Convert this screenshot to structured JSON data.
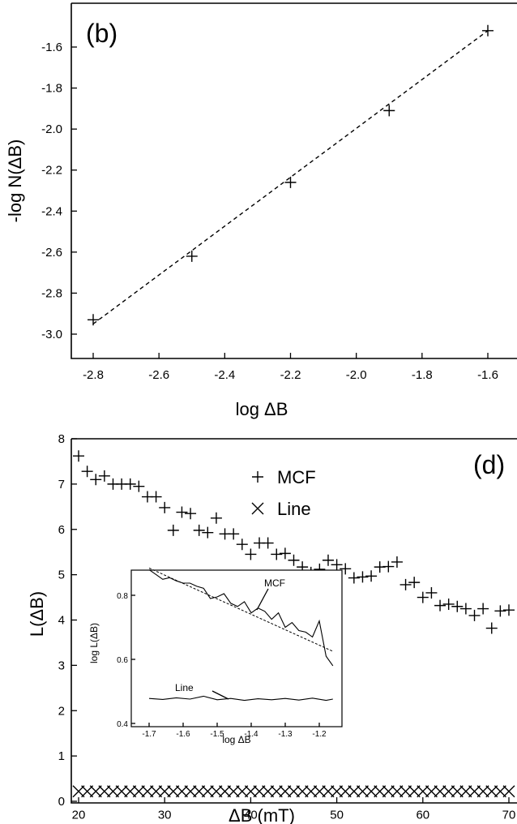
{
  "chart_data": [
    {
      "type": "scatter",
      "panel_label": "(b)",
      "xlabel": "log ΔB",
      "ylabel": "-log N(ΔB)",
      "xlim": [
        -2.9,
        -1.55
      ],
      "ylim": [
        -3.1,
        -1.45
      ],
      "xticks": [
        "-2.8",
        "-2.6",
        "-2.4",
        "-2.2",
        "-2.0",
        "-1.8",
        "-1.6"
      ],
      "xtick_values": [
        -2.8,
        -2.6,
        -2.4,
        -2.2,
        -2.0,
        -1.8,
        -1.6
      ],
      "yticks": [
        "-3.0",
        "-2.8",
        "-2.6",
        "-2.4",
        "-2.2",
        "-2.0",
        "-1.8",
        "-1.6"
      ],
      "ytick_values": [
        -3.0,
        -2.8,
        -2.6,
        -2.4,
        -2.2,
        -2.0,
        -1.8,
        -1.6
      ],
      "points": {
        "x": [
          -2.8,
          -2.5,
          -2.2,
          -1.9,
          -1.6
        ],
        "y": [
          -2.93,
          -2.62,
          -2.26,
          -1.91,
          -1.52
        ]
      },
      "fit_line": {
        "x": [
          -2.8,
          -1.6
        ],
        "y": [
          -2.95,
          -1.52
        ],
        "style": "dashed"
      }
    },
    {
      "type": "scatter",
      "panel_label": "(d)",
      "xlabel": "ΔB (mT)",
      "ylabel": "L(ΔB)",
      "xlim": [
        19.5,
        72
      ],
      "ylim": [
        0,
        8
      ],
      "xticks": [
        "20",
        "30",
        "40",
        "50",
        "60",
        "70"
      ],
      "xtick_values": [
        20,
        30,
        40,
        50,
        60,
        70
      ],
      "yticks": [
        "0",
        "1",
        "2",
        "3",
        "4",
        "5",
        "6",
        "7",
        "8"
      ],
      "ytick_values": [
        0,
        1,
        2,
        3,
        4,
        5,
        6,
        7,
        8
      ],
      "legend": [
        {
          "name": "MCF",
          "marker": "+"
        },
        {
          "name": "Line",
          "marker": "x"
        }
      ],
      "series": [
        {
          "name": "MCF",
          "marker": "+",
          "x": [
            20,
            21,
            22,
            23,
            24,
            25,
            26,
            27,
            28,
            29,
            30,
            31,
            32,
            33,
            34,
            35,
            36,
            37,
            38,
            39,
            40,
            41,
            42,
            43,
            44,
            45,
            46,
            47,
            48,
            49,
            50,
            51,
            52,
            53,
            54,
            55,
            56,
            57,
            58,
            59,
            60,
            61,
            62,
            63,
            64,
            65,
            66,
            67,
            68,
            69,
            70
          ],
          "y": [
            7.62,
            7.28,
            7.1,
            7.18,
            7.0,
            7.0,
            7.0,
            6.95,
            6.72,
            6.72,
            6.48,
            5.98,
            6.38,
            6.35,
            5.98,
            5.93,
            6.25,
            5.9,
            5.9,
            5.67,
            5.45,
            5.7,
            5.7,
            5.45,
            5.47,
            5.32,
            5.17,
            5.05,
            5.12,
            5.32,
            5.22,
            5.13,
            4.93,
            4.95,
            4.97,
            5.17,
            5.18,
            5.28,
            4.78,
            4.83,
            4.5,
            4.6,
            4.32,
            4.35,
            4.3,
            4.25,
            4.1,
            4.25,
            3.82,
            4.2,
            4.22
          ]
        },
        {
          "name": "Line",
          "marker": "x",
          "x": [
            20,
            21,
            22,
            23,
            24,
            25,
            26,
            27,
            28,
            29,
            30,
            31,
            32,
            33,
            34,
            35,
            36,
            37,
            38,
            39,
            40,
            41,
            42,
            43,
            44,
            45,
            46,
            47,
            48,
            49,
            50,
            51,
            52,
            53,
            54,
            55,
            56,
            57,
            58,
            59,
            60,
            61,
            62,
            63,
            64,
            65,
            66,
            67,
            68,
            69,
            70
          ],
          "y": [
            0.22,
            0.22,
            0.22,
            0.22,
            0.22,
            0.22,
            0.22,
            0.22,
            0.22,
            0.22,
            0.22,
            0.22,
            0.22,
            0.22,
            0.22,
            0.22,
            0.22,
            0.22,
            0.22,
            0.22,
            0.22,
            0.22,
            0.22,
            0.22,
            0.22,
            0.22,
            0.22,
            0.22,
            0.22,
            0.22,
            0.22,
            0.22,
            0.22,
            0.22,
            0.22,
            0.22,
            0.22,
            0.22,
            0.22,
            0.22,
            0.22,
            0.22,
            0.22,
            0.22,
            0.22,
            0.22,
            0.22,
            0.22,
            0.22,
            0.22,
            0.22
          ]
        }
      ],
      "inset": {
        "type": "line",
        "xlabel": "log ΔB",
        "ylabel": "log L(ΔB)",
        "xlim": [
          -1.75,
          -1.14
        ],
        "ylim": [
          0.4,
          0.9
        ],
        "xticks": [
          "-1.7",
          "-1.6",
          "-1.5",
          "-1.4",
          "-1.3",
          "-1.2"
        ],
        "xtick_values": [
          -1.7,
          -1.6,
          -1.5,
          -1.4,
          -1.3,
          -1.2
        ],
        "yticks": [
          "0.4",
          "0.6",
          "0.8"
        ],
        "ytick_values": [
          0.4,
          0.6,
          0.8
        ],
        "annotations": [
          {
            "text": "MCF",
            "x": -1.35,
            "y": 0.82
          },
          {
            "text": "Line",
            "x": -1.62,
            "y": 0.525
          }
        ],
        "series": [
          {
            "name": "MCF",
            "x": [
              -1.7,
              -1.68,
              -1.66,
              -1.64,
              -1.62,
              -1.6,
              -1.58,
              -1.56,
              -1.54,
              -1.52,
              -1.5,
              -1.48,
              -1.46,
              -1.44,
              -1.42,
              -1.4,
              -1.38,
              -1.36,
              -1.34,
              -1.32,
              -1.3,
              -1.28,
              -1.26,
              -1.24,
              -1.22,
              -1.2,
              -1.18,
              -1.16
            ],
            "y": [
              0.88,
              0.865,
              0.85,
              0.855,
              0.845,
              0.838,
              0.838,
              0.828,
              0.822,
              0.79,
              0.795,
              0.805,
              0.775,
              0.765,
              0.78,
              0.745,
              0.76,
              0.75,
              0.725,
              0.745,
              0.7,
              0.715,
              0.69,
              0.685,
              0.67,
              0.72,
              0.61,
              0.58
            ]
          },
          {
            "name": "MCF fit",
            "style": "dashed",
            "x": [
              -1.7,
              -1.16
            ],
            "y": [
              0.885,
              0.625
            ]
          },
          {
            "name": "Line",
            "x": [
              -1.7,
              -1.66,
              -1.62,
              -1.58,
              -1.54,
              -1.5,
              -1.46,
              -1.42,
              -1.38,
              -1.34,
              -1.3,
              -1.26,
              -1.22,
              -1.18,
              -1.16
            ],
            "y": [
              0.478,
              0.475,
              0.48,
              0.476,
              0.485,
              0.474,
              0.478,
              0.472,
              0.477,
              0.474,
              0.478,
              0.473,
              0.479,
              0.472,
              0.476
            ]
          }
        ]
      }
    }
  ]
}
